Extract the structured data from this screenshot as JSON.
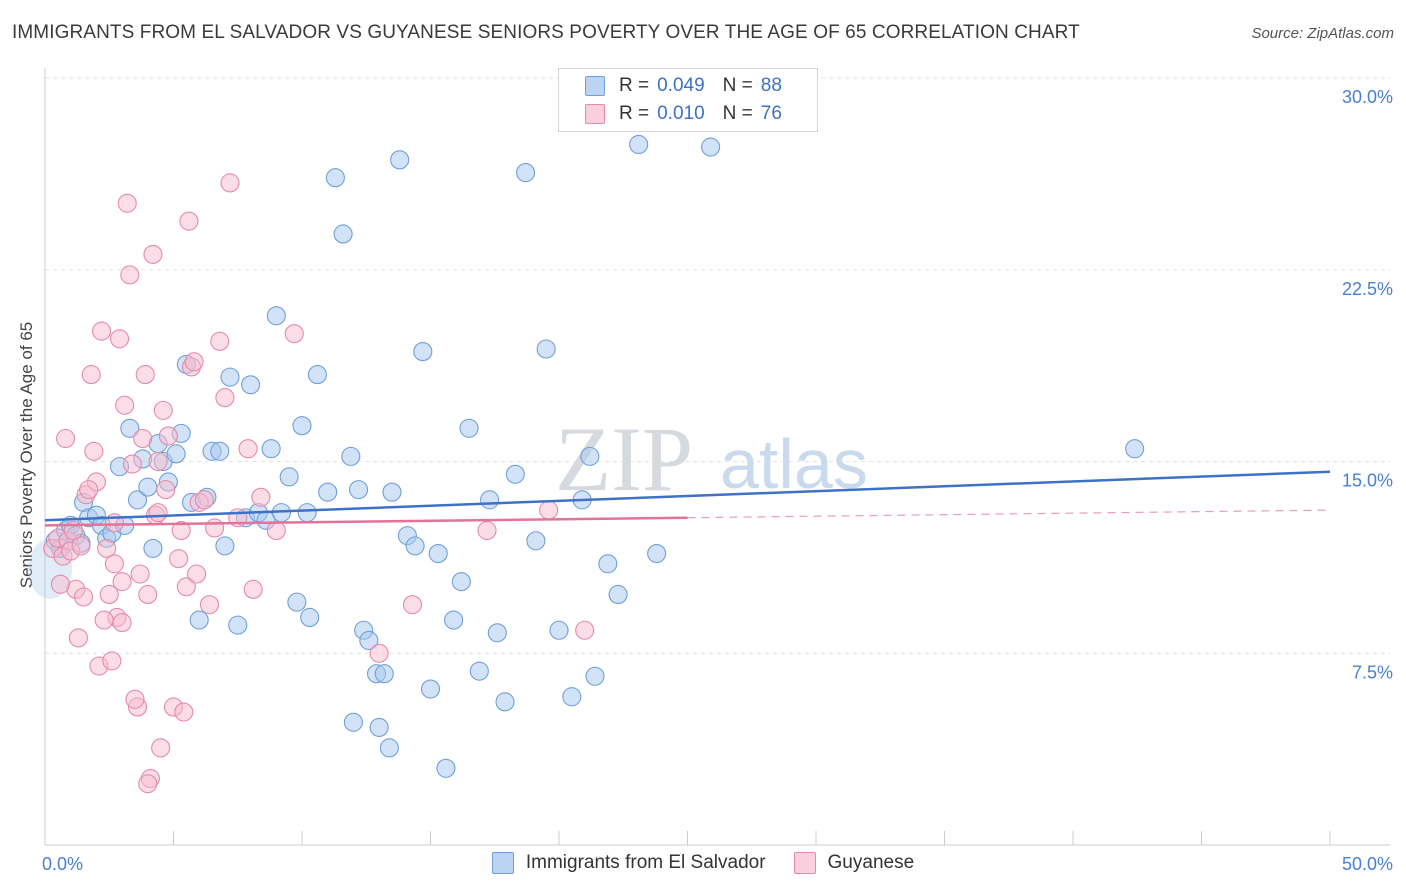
{
  "chart_data": {
    "type": "scatter",
    "title": "IMMIGRANTS FROM EL SALVADOR VS GUYANESE SENIORS POVERTY OVER THE AGE OF 65 CORRELATION CHART",
    "source": "Source: ZipAtlas.com",
    "xlabel": "",
    "ylabel": "Seniors Poverty Over the Age of 65",
    "xlim": [
      0,
      50
    ],
    "ylim": [
      0,
      30
    ],
    "x_tick_labels": [
      "0.0%",
      "50.0%"
    ],
    "y_ticks": [
      7.5,
      15.0,
      22.5,
      30.0
    ],
    "y_tick_labels": [
      "7.5%",
      "15.0%",
      "22.5%",
      "30.0%"
    ],
    "watermark": {
      "zip": "ZIP",
      "atlas": "atlas"
    },
    "legend": [
      {
        "r_label": "R =",
        "r_value": "0.049",
        "n_label": "N =",
        "n_value": "88"
      },
      {
        "r_label": "R =",
        "r_value": "0.010",
        "n_label": "N =",
        "n_value": "76"
      }
    ],
    "series": [
      {
        "name": "Immigrants from El Salvador",
        "color": "#a8c8ef",
        "stroke": "#6f9fd8",
        "trend_color": "#3d72c6",
        "trend": {
          "x0": 0,
          "y0": 12.7,
          "x1": 50,
          "y1": 14.6
        },
        "points": [
          [
            0.4,
            11.9
          ],
          [
            0.6,
            11.6
          ],
          [
            0.8,
            12.3
          ],
          [
            1.0,
            12.5
          ],
          [
            1.2,
            12.1
          ],
          [
            1.4,
            11.8
          ],
          [
            1.5,
            13.4
          ],
          [
            1.7,
            12.8
          ],
          [
            2.0,
            12.9
          ],
          [
            2.2,
            12.5
          ],
          [
            2.4,
            12.0
          ],
          [
            2.6,
            12.2
          ],
          [
            2.9,
            14.8
          ],
          [
            3.1,
            12.5
          ],
          [
            3.3,
            16.3
          ],
          [
            3.6,
            13.5
          ],
          [
            3.8,
            15.1
          ],
          [
            4.0,
            14.0
          ],
          [
            4.2,
            11.6
          ],
          [
            4.4,
            15.7
          ],
          [
            4.6,
            15.0
          ],
          [
            4.8,
            14.2
          ],
          [
            5.1,
            15.3
          ],
          [
            5.3,
            16.1
          ],
          [
            5.5,
            18.8
          ],
          [
            5.7,
            13.4
          ],
          [
            6.0,
            8.8
          ],
          [
            6.3,
            13.6
          ],
          [
            6.5,
            15.4
          ],
          [
            6.8,
            15.4
          ],
          [
            7.0,
            11.7
          ],
          [
            7.2,
            18.3
          ],
          [
            7.5,
            8.6
          ],
          [
            7.8,
            12.8
          ],
          [
            8.0,
            18.0
          ],
          [
            8.3,
            13.0
          ],
          [
            8.6,
            12.7
          ],
          [
            8.8,
            15.5
          ],
          [
            9.2,
            13.0
          ],
          [
            9.5,
            14.4
          ],
          [
            9.0,
            20.7
          ],
          [
            9.8,
            9.5
          ],
          [
            10.0,
            16.4
          ],
          [
            10.3,
            8.9
          ],
          [
            10.6,
            18.4
          ],
          [
            10.2,
            13.0
          ],
          [
            11.0,
            13.8
          ],
          [
            11.3,
            26.1
          ],
          [
            11.6,
            23.9
          ],
          [
            11.9,
            15.2
          ],
          [
            12.2,
            13.9
          ],
          [
            12.4,
            8.4
          ],
          [
            12.6,
            8.0
          ],
          [
            12.9,
            6.7
          ],
          [
            13.2,
            6.7
          ],
          [
            13.5,
            13.8
          ],
          [
            13.8,
            26.8
          ],
          [
            14.1,
            12.1
          ],
          [
            14.4,
            11.7
          ],
          [
            14.7,
            19.3
          ],
          [
            15.0,
            6.1
          ],
          [
            15.3,
            11.4
          ],
          [
            15.6,
            3.0
          ],
          [
            15.9,
            8.8
          ],
          [
            16.2,
            10.3
          ],
          [
            16.5,
            16.3
          ],
          [
            16.9,
            6.8
          ],
          [
            17.3,
            13.5
          ],
          [
            17.6,
            8.3
          ],
          [
            17.9,
            5.6
          ],
          [
            18.3,
            14.5
          ],
          [
            18.7,
            26.3
          ],
          [
            19.1,
            11.9
          ],
          [
            19.5,
            19.4
          ],
          [
            20.0,
            8.4
          ],
          [
            20.5,
            5.8
          ],
          [
            20.9,
            13.5
          ],
          [
            21.4,
            6.6
          ],
          [
            21.9,
            11.0
          ],
          [
            22.3,
            9.8
          ],
          [
            12.0,
            4.8
          ],
          [
            13.0,
            4.6
          ],
          [
            23.1,
            27.4
          ],
          [
            25.9,
            27.3
          ],
          [
            23.8,
            11.4
          ],
          [
            42.4,
            15.5
          ],
          [
            21.2,
            15.2
          ],
          [
            13.4,
            3.8
          ]
        ]
      },
      {
        "name": "Guyanese",
        "color": "#f7bcd0",
        "stroke": "#e58aaa",
        "trend_color": "#e2739a",
        "trend": {
          "x0": 0,
          "y0": 12.5,
          "x1": 25,
          "y1": 12.8
        },
        "trend_ext": {
          "x0": 25,
          "y0": 12.8,
          "x1": 50,
          "y1": 13.1
        },
        "points": [
          [
            0.3,
            11.6
          ],
          [
            0.5,
            12.0
          ],
          [
            0.7,
            11.3
          ],
          [
            0.9,
            11.9
          ],
          [
            1.0,
            11.5
          ],
          [
            1.2,
            10.0
          ],
          [
            1.4,
            11.7
          ],
          [
            1.1,
            12.3
          ],
          [
            1.5,
            9.7
          ],
          [
            1.6,
            13.7
          ],
          [
            1.8,
            18.4
          ],
          [
            2.0,
            14.2
          ],
          [
            2.2,
            20.1
          ],
          [
            2.4,
            11.6
          ],
          [
            2.5,
            9.8
          ],
          [
            2.7,
            12.6
          ],
          [
            2.8,
            8.9
          ],
          [
            2.9,
            19.8
          ],
          [
            3.0,
            10.3
          ],
          [
            3.1,
            17.2
          ],
          [
            3.2,
            25.1
          ],
          [
            3.3,
            22.3
          ],
          [
            3.4,
            14.9
          ],
          [
            3.6,
            5.4
          ],
          [
            3.7,
            10.6
          ],
          [
            3.8,
            15.9
          ],
          [
            3.9,
            18.4
          ],
          [
            4.0,
            9.8
          ],
          [
            4.1,
            2.6
          ],
          [
            4.2,
            23.1
          ],
          [
            4.3,
            12.9
          ],
          [
            4.4,
            15.0
          ],
          [
            4.5,
            3.8
          ],
          [
            4.6,
            17.0
          ],
          [
            4.7,
            13.9
          ],
          [
            4.8,
            16.0
          ],
          [
            5.0,
            5.4
          ],
          [
            5.2,
            11.2
          ],
          [
            5.3,
            12.3
          ],
          [
            5.5,
            10.1
          ],
          [
            5.6,
            24.4
          ],
          [
            5.7,
            18.7
          ],
          [
            5.9,
            10.6
          ],
          [
            6.0,
            13.4
          ],
          [
            6.2,
            13.5
          ],
          [
            6.4,
            9.4
          ],
          [
            6.6,
            12.4
          ],
          [
            6.8,
            19.7
          ],
          [
            7.0,
            17.5
          ],
          [
            7.2,
            25.9
          ],
          [
            7.5,
            12.8
          ],
          [
            7.9,
            15.5
          ],
          [
            8.1,
            10.0
          ],
          [
            8.4,
            13.6
          ],
          [
            9.0,
            12.3
          ],
          [
            9.7,
            20.0
          ],
          [
            1.3,
            8.1
          ],
          [
            2.1,
            7.0
          ],
          [
            2.3,
            8.8
          ],
          [
            2.6,
            7.2
          ],
          [
            3.5,
            5.7
          ],
          [
            4.0,
            2.4
          ],
          [
            5.4,
            5.2
          ],
          [
            13.0,
            7.5
          ],
          [
            14.3,
            9.4
          ],
          [
            19.6,
            13.1
          ],
          [
            21.0,
            8.4
          ],
          [
            17.2,
            12.3
          ],
          [
            1.7,
            13.9
          ],
          [
            0.6,
            10.2
          ],
          [
            0.8,
            15.9
          ],
          [
            2.7,
            11.0
          ],
          [
            3.0,
            8.7
          ],
          [
            5.8,
            18.9
          ],
          [
            4.4,
            13.0
          ],
          [
            1.9,
            15.4
          ]
        ]
      }
    ]
  },
  "bottom_legend": [
    "Immigrants from El Salvador",
    "Guyanese"
  ]
}
